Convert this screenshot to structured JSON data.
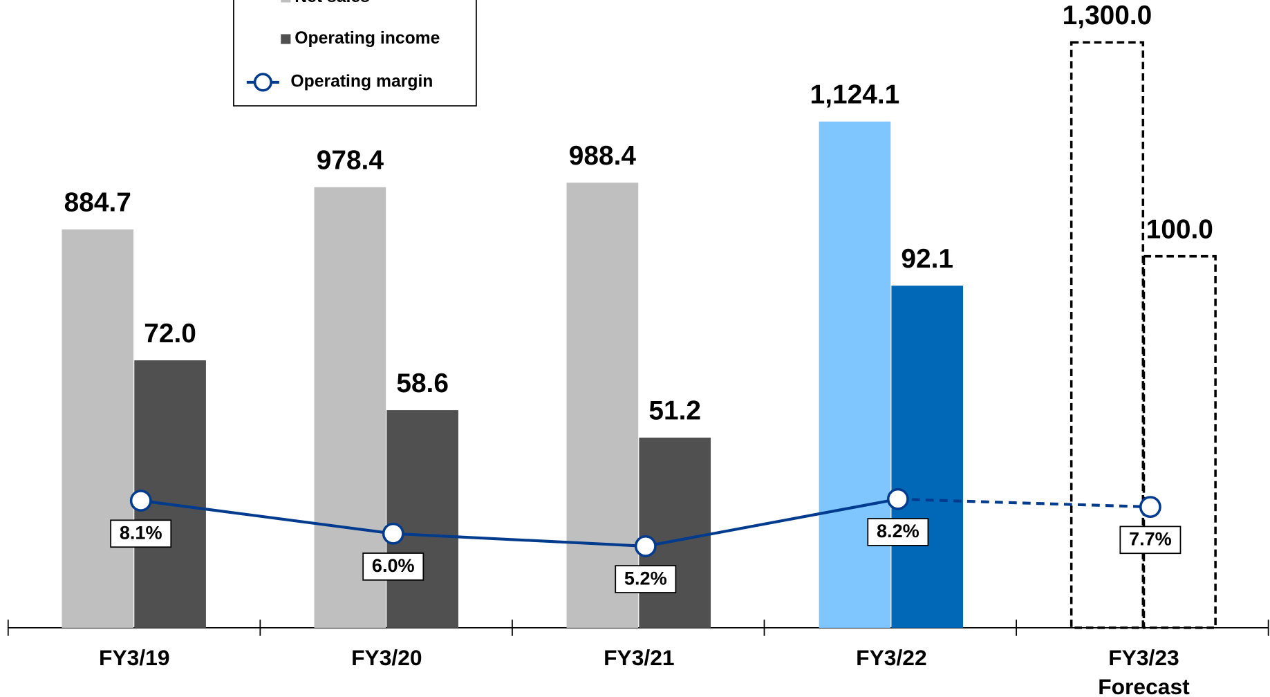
{
  "chart_data": {
    "type": "bar_line",
    "categories": [
      "FY3/19",
      "FY3/20",
      "FY3/21",
      "FY3/22",
      "FY3/23\nForecast"
    ],
    "forecast": [
      false,
      false,
      false,
      false,
      true
    ],
    "series": [
      {
        "name": "Net sales",
        "color": "#bfbfbf",
        "axis": "y",
        "kind": "bar",
        "point_colors": [
          "#bfbfbf",
          "#bfbfbf",
          "#bfbfbf",
          "#7fc6ff",
          "none"
        ],
        "values": [
          884.7,
          978.4,
          988.4,
          1124.1,
          1300.0
        ],
        "value_labels": [
          "884.7",
          "978.4",
          "988.4",
          "1,124.1",
          "1,300.0"
        ]
      },
      {
        "name": "Operating income",
        "color": "#505050",
        "axis": "y2",
        "kind": "bar",
        "point_colors": [
          "#505050",
          "#505050",
          "#505050",
          "#0068b7",
          "none"
        ],
        "values": [
          72.0,
          58.6,
          51.2,
          92.1,
          100.0
        ],
        "value_labels": [
          "72.0",
          "58.6",
          "51.2",
          "92.1",
          "100.0"
        ]
      },
      {
        "name": "Operating margin",
        "color": "#003b8e",
        "axis": "y3",
        "kind": "line",
        "values": [
          8.1,
          6.0,
          5.2,
          8.2,
          7.7
        ],
        "value_labels": [
          "8.1%",
          "6.0%",
          "5.2%",
          "8.2%",
          "7.7%"
        ]
      }
    ],
    "ylim": [
      0,
      1394
    ],
    "y2lim": [
      0,
      169
    ],
    "y3lim": [
      0,
      40
    ]
  }
}
